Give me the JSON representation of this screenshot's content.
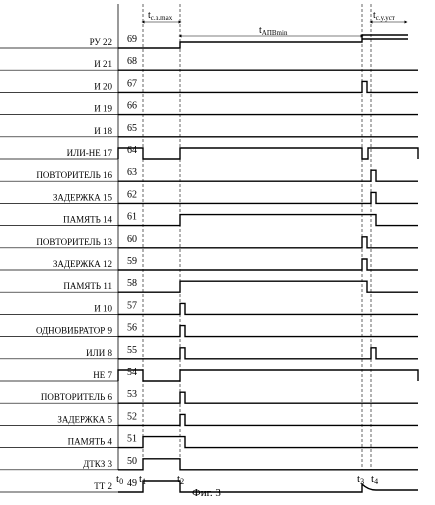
{
  "rows": [
    {
      "label": "РУ 22",
      "num": "69",
      "wave": "ru"
    },
    {
      "label": "И 21",
      "num": "68",
      "wave": "zero"
    },
    {
      "label": "И 20",
      "num": "67",
      "wave": "pulse_t3"
    },
    {
      "label": "И 19",
      "num": "66",
      "wave": "zero"
    },
    {
      "label": "И 18",
      "num": "65",
      "wave": "zero"
    },
    {
      "label": "ИЛИ-НЕ 17",
      "num": "64",
      "wave": "orne"
    },
    {
      "label": "ПОВТОРИТЕЛЬ 16",
      "num": "63",
      "wave": "pulse_t4"
    },
    {
      "label": "ЗАДЕРЖКА 15",
      "num": "62",
      "wave": "pulse_t4"
    },
    {
      "label": "ПАМЯТЬ 14",
      "num": "61",
      "wave": "mem14"
    },
    {
      "label": "ПОВТОРИТЕЛЬ 13",
      "num": "60",
      "wave": "pulse_t3"
    },
    {
      "label": "ЗАДЕРЖКА 12",
      "num": "59",
      "wave": "pulse_t3"
    },
    {
      "label": "ПАМЯТЬ 11",
      "num": "58",
      "wave": "mem11"
    },
    {
      "label": "И 10",
      "num": "57",
      "wave": "pulse_t2"
    },
    {
      "label": "ОДНОВИБРАТОР 9",
      "num": "56",
      "wave": "pulse_t2"
    },
    {
      "label": "ИЛИ 8",
      "num": "55",
      "wave": "pulse_t2_t4"
    },
    {
      "label": "НЕ 7",
      "num": "54",
      "wave": "not7"
    },
    {
      "label": "ПОВТОРИТЕЛЬ 6",
      "num": "53",
      "wave": "pulse_t2"
    },
    {
      "label": "ЗАДЕРЖКА 5",
      "num": "52",
      "wave": "pulse_t2"
    },
    {
      "label": "ПАМЯТЬ 4",
      "num": "51",
      "wave": "mem4"
    },
    {
      "label": "ДТКЗ 3",
      "num": "50",
      "wave": "dtkz"
    },
    {
      "label": "ТТ 2",
      "num": "49",
      "wave": "tt"
    }
  ],
  "time_labels": {
    "t0": {
      "main": "t",
      "sub": "0"
    },
    "t1": {
      "main": "t",
      "sub": "1"
    },
    "t2": {
      "main": "t",
      "sub": "2"
    },
    "t3": {
      "main": "t",
      "sub": "3"
    },
    "t4": {
      "main": "t",
      "sub": "4"
    }
  },
  "intervals": {
    "tsz": {
      "main": "t",
      "sub": "с.з.max"
    },
    "tapv": {
      "main": "t",
      "sub": "АПВmin"
    },
    "tsu": {
      "main": "t",
      "sub": "с.у.уст"
    }
  },
  "caption": "Фиг. 3"
}
